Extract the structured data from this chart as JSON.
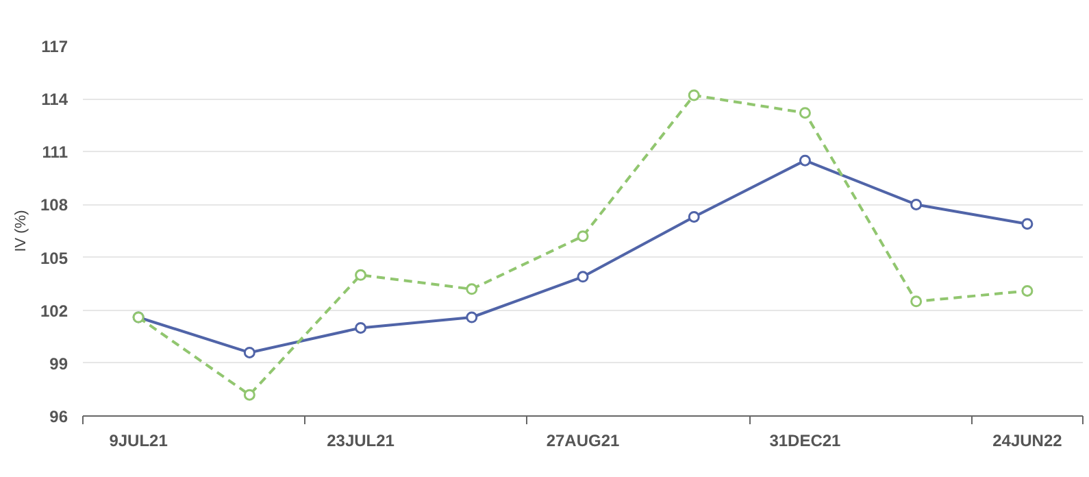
{
  "chart_data": {
    "type": "line",
    "ylabel": "IV (%)",
    "categories": [
      "9JUL21",
      null,
      "23JUL21",
      null,
      "27AUG21",
      null,
      "31DEC21",
      null,
      "24JUN22"
    ],
    "series": [
      {
        "color": "#5064a8",
        "line_style": "solid",
        "values": [
          101.6,
          99.6,
          101.0,
          101.6,
          103.9,
          107.3,
          110.5,
          108.0,
          106.9
        ]
      },
      {
        "color": "#91c66f",
        "line_style": "dashed",
        "values": [
          101.6,
          97.2,
          104.0,
          103.2,
          106.2,
          114.2,
          113.2,
          102.5,
          103.1
        ]
      }
    ],
    "ylim": [
      96,
      117
    ],
    "yticks": [
      96,
      99,
      102,
      105,
      108,
      111,
      114,
      117
    ],
    "grid": "y",
    "marker": "circle"
  }
}
